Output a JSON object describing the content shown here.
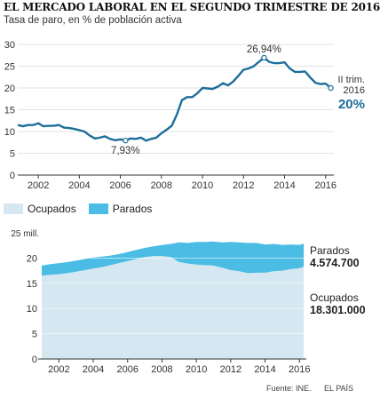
{
  "title": "EL MERCADO LABORAL EN EL SEGUNDO TRIMESTRE DE 2016",
  "subtitle": "Tasa de paro, en % de población activa",
  "colors": {
    "line": "#1c6e9a",
    "parados": "#4bbde4",
    "ocupados": "#d5e8f2",
    "grid": "#c8c8c8",
    "axis": "#333333"
  },
  "footer": {
    "source": "Fuente: INE.",
    "outlet": "EL PAÍS"
  },
  "chart_data": [
    {
      "type": "line",
      "ylim": [
        0,
        30
      ],
      "yticks": [
        "0",
        "5",
        "10",
        "15",
        "20",
        "25",
        "30"
      ],
      "xticks": [
        "2002",
        "2004",
        "2006",
        "2008",
        "2010",
        "2012",
        "2014",
        "2016"
      ],
      "x": [
        2001.0,
        2001.25,
        2001.5,
        2001.75,
        2002.0,
        2002.25,
        2002.5,
        2002.75,
        2003.0,
        2003.25,
        2003.5,
        2003.75,
        2004.0,
        2004.25,
        2004.5,
        2004.75,
        2005.0,
        2005.25,
        2005.5,
        2005.75,
        2006.0,
        2006.25,
        2006.5,
        2006.75,
        2007.0,
        2007.25,
        2007.5,
        2007.75,
        2008.0,
        2008.25,
        2008.5,
        2008.75,
        2009.0,
        2009.25,
        2009.5,
        2009.75,
        2010.0,
        2010.25,
        2010.5,
        2010.75,
        2011.0,
        2011.25,
        2011.5,
        2011.75,
        2012.0,
        2012.25,
        2012.5,
        2012.75,
        2013.0,
        2013.25,
        2013.5,
        2013.75,
        2014.0,
        2014.25,
        2014.5,
        2014.75,
        2015.0,
        2015.25,
        2015.5,
        2015.75,
        2016.0,
        2016.25
      ],
      "values": [
        11.5,
        11.2,
        11.5,
        11.5,
        11.9,
        11.2,
        11.3,
        11.3,
        11.5,
        10.9,
        10.8,
        10.6,
        10.3,
        10.0,
        9.1,
        8.4,
        8.6,
        8.9,
        8.3,
        8.0,
        8.2,
        7.93,
        8.4,
        8.3,
        8.6,
        7.9,
        8.3,
        8.6,
        9.6,
        10.4,
        11.3,
        13.9,
        17.2,
        17.9,
        17.9,
        18.8,
        20.0,
        19.9,
        19.8,
        20.3,
        21.1,
        20.6,
        21.5,
        22.8,
        24.2,
        24.5,
        25.0,
        26.0,
        26.94,
        26.0,
        25.7,
        25.7,
        25.9,
        24.5,
        23.7,
        23.7,
        23.8,
        22.4,
        21.2,
        20.9,
        21.0,
        20.0
      ],
      "annotations": [
        {
          "label": "26,94%",
          "x": 2013.0,
          "y": 26.94
        },
        {
          "label": "7,93%",
          "x": 2006.25,
          "y": 7.93
        }
      ],
      "end_label": {
        "line1": "II trim.",
        "line2": "2016",
        "value": "20%"
      }
    },
    {
      "type": "area",
      "ylim": [
        0,
        25
      ],
      "ylabel_top": "25 mill.",
      "yticks": [
        "0",
        "5",
        "10",
        "15",
        "20"
      ],
      "xticks": [
        "2002",
        "2004",
        "2006",
        "2008",
        "2010",
        "2012",
        "2014",
        "2016"
      ],
      "series": [
        {
          "name": "Ocupados",
          "x": [
            2001.0,
            2001.5,
            2002.0,
            2002.5,
            2003.0,
            2003.5,
            2004.0,
            2004.5,
            2005.0,
            2005.5,
            2006.0,
            2006.5,
            2007.0,
            2007.5,
            2008.0,
            2008.5,
            2009.0,
            2009.5,
            2010.0,
            2010.5,
            2011.0,
            2011.5,
            2012.0,
            2012.5,
            2013.0,
            2013.5,
            2014.0,
            2014.5,
            2015.0,
            2015.5,
            2016.0,
            2016.25
          ],
          "values": [
            16.5,
            16.7,
            16.8,
            17.0,
            17.3,
            17.6,
            17.9,
            18.2,
            18.6,
            19.0,
            19.4,
            19.8,
            20.2,
            20.4,
            20.4,
            20.2,
            19.2,
            18.9,
            18.7,
            18.6,
            18.5,
            18.1,
            17.6,
            17.4,
            17.0,
            17.1,
            17.1,
            17.4,
            17.5,
            17.8,
            18.0,
            18.3
          ]
        },
        {
          "name": "Parados",
          "x": [
            2001.0,
            2001.5,
            2002.0,
            2002.5,
            2003.0,
            2003.5,
            2004.0,
            2004.5,
            2005.0,
            2005.5,
            2006.0,
            2006.5,
            2007.0,
            2007.5,
            2008.0,
            2008.5,
            2009.0,
            2009.5,
            2010.0,
            2010.5,
            2011.0,
            2011.5,
            2012.0,
            2012.5,
            2013.0,
            2013.5,
            2014.0,
            2014.5,
            2015.0,
            2015.5,
            2016.0,
            2016.25
          ],
          "values": [
            2.0,
            2.1,
            2.2,
            2.2,
            2.2,
            2.2,
            2.2,
            2.1,
            1.9,
            1.8,
            1.8,
            1.8,
            1.8,
            1.9,
            2.2,
            2.6,
            3.9,
            4.1,
            4.5,
            4.6,
            4.8,
            5.0,
            5.6,
            5.7,
            6.0,
            5.9,
            5.6,
            5.4,
            5.1,
            4.9,
            4.6,
            4.574
          ]
        }
      ],
      "end_labels": [
        {
          "name": "Parados",
          "value": "4.574.700"
        },
        {
          "name": "Ocupados",
          "value": "18.301.000"
        }
      ]
    }
  ]
}
